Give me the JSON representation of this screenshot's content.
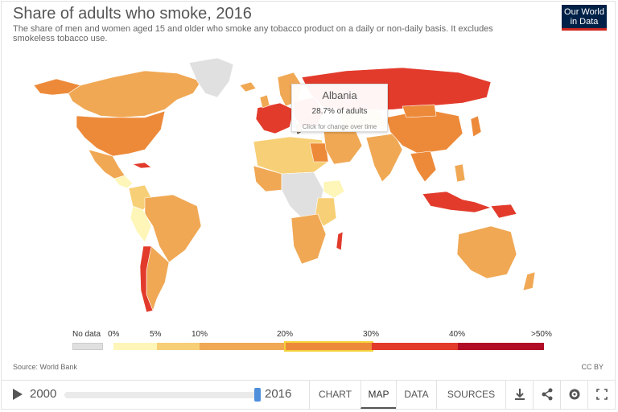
{
  "header": {
    "title": "Share of adults who smoke, 2016",
    "subtitle": "The share of men and women aged 15 and older who smoke any tobacco product on a daily or non-daily basis. It excludes smokeless tobacco use.",
    "logo_line1": "Our World",
    "logo_line2": "in Data"
  },
  "tooltip": {
    "country": "Albania",
    "value": "28.7% of adults",
    "hint": "Click for change over time"
  },
  "legend": {
    "no_data_label": "No data",
    "ticks": [
      "0%",
      "5%",
      "10%",
      "20%",
      "30%",
      "40%",
      ">50%"
    ],
    "bins": [
      {
        "color": "#fdf6b8"
      },
      {
        "color": "#f7cf76"
      },
      {
        "color": "#f0a854"
      },
      {
        "color": "#ed8a3a",
        "highlighted": true
      },
      {
        "color": "#e23b2c"
      },
      {
        "color": "#b10d26"
      }
    ],
    "no_data_color": "#e0e0e0"
  },
  "footer": {
    "source": "Source: World Bank",
    "license": "CC BY",
    "year_start": "2000",
    "year_end": "2016",
    "tabs": [
      "CHART",
      "MAP",
      "DATA",
      "SOURCES"
    ],
    "active_tab": "MAP",
    "icons": [
      "download-icon",
      "share-icon",
      "settings-icon",
      "fullscreen-icon"
    ]
  }
}
